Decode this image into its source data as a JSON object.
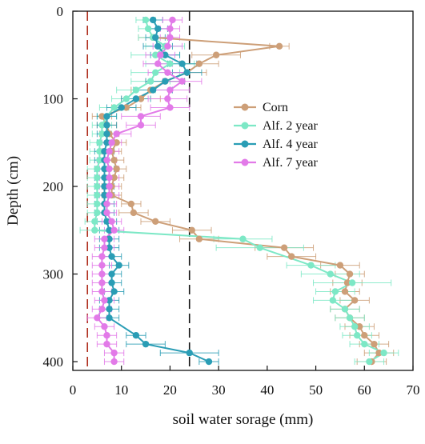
{
  "chart_data": {
    "type": "line",
    "orientation": "depth-profile",
    "xlabel": "soil water sorage (mm)",
    "ylabel": "Depth (cm)",
    "xlim": [
      0,
      70
    ],
    "ylim": [
      0,
      410
    ],
    "y_inverted": true,
    "x_ticks": [
      0,
      10,
      20,
      30,
      40,
      50,
      60,
      70
    ],
    "y_ticks": [
      0,
      100,
      200,
      300,
      400
    ],
    "grid": false,
    "legend_position": "right-upper",
    "reference_lines": [
      {
        "x": 3,
        "style": "dashed",
        "color": "#b03020"
      },
      {
        "x": 24,
        "style": "dashed",
        "color": "#111111"
      }
    ],
    "series": [
      {
        "name": "Corn",
        "color": "#cd9f78",
        "points": [
          {
            "x": 16.5,
            "y": 30,
            "err": 3
          },
          {
            "x": 42.5,
            "y": 40,
            "err": 2
          },
          {
            "x": 29.5,
            "y": 50,
            "err": 5
          },
          {
            "x": 26.0,
            "y": 60,
            "err": 4
          },
          {
            "x": 23.5,
            "y": 70,
            "err": 4
          },
          {
            "x": 19.0,
            "y": 80,
            "err": 4
          },
          {
            "x": 16.0,
            "y": 90,
            "err": 4
          },
          {
            "x": 14.0,
            "y": 100,
            "err": 4
          },
          {
            "x": 11.0,
            "y": 110,
            "err": 3
          },
          {
            "x": 6.0,
            "y": 120,
            "err": 2
          },
          {
            "x": 7.0,
            "y": 130,
            "err": 2
          },
          {
            "x": 7.5,
            "y": 140,
            "err": 2
          },
          {
            "x": 9.0,
            "y": 150,
            "err": 2
          },
          {
            "x": 8.0,
            "y": 160,
            "err": 2
          },
          {
            "x": 8.5,
            "y": 170,
            "err": 2
          },
          {
            "x": 9.0,
            "y": 180,
            "err": 2
          },
          {
            "x": 8.5,
            "y": 190,
            "err": 2
          },
          {
            "x": 8.0,
            "y": 200,
            "err": 2
          },
          {
            "x": 8.0,
            "y": 210,
            "err": 2
          },
          {
            "x": 12.0,
            "y": 220,
            "err": 2
          },
          {
            "x": 12.5,
            "y": 230,
            "err": 3
          },
          {
            "x": 17.0,
            "y": 240,
            "err": 3
          },
          {
            "x": 24.5,
            "y": 250,
            "err": 4
          },
          {
            "x": 26.0,
            "y": 260,
            "err": 4
          },
          {
            "x": 43.5,
            "y": 270,
            "err": 6
          },
          {
            "x": 45.0,
            "y": 280,
            "err": 5
          },
          {
            "x": 55.0,
            "y": 290,
            "err": 4
          },
          {
            "x": 57.0,
            "y": 300,
            "err": 3
          },
          {
            "x": 56.5,
            "y": 310,
            "err": 3
          },
          {
            "x": 56.0,
            "y": 320,
            "err": 3
          },
          {
            "x": 58.0,
            "y": 330,
            "err": 3
          },
          {
            "x": 56.0,
            "y": 340,
            "err": 3
          },
          {
            "x": 57.0,
            "y": 350,
            "err": 3
          },
          {
            "x": 59.0,
            "y": 360,
            "err": 3
          },
          {
            "x": 60.0,
            "y": 370,
            "err": 3
          },
          {
            "x": 62.0,
            "y": 380,
            "err": 3
          },
          {
            "x": 63.0,
            "y": 390,
            "err": 3
          },
          {
            "x": 61.5,
            "y": 400,
            "err": 3
          }
        ]
      },
      {
        "name": "Alf. 2 year",
        "color": "#7de8c6",
        "points": [
          {
            "x": 15.0,
            "y": 10,
            "err": 2
          },
          {
            "x": 15.5,
            "y": 20,
            "err": 2
          },
          {
            "x": 16.5,
            "y": 30,
            "err": 3
          },
          {
            "x": 19.0,
            "y": 40,
            "err": 4
          },
          {
            "x": 17.0,
            "y": 50,
            "err": 5
          },
          {
            "x": 20.0,
            "y": 60,
            "err": 5
          },
          {
            "x": 17.0,
            "y": 70,
            "err": 5
          },
          {
            "x": 16.0,
            "y": 80,
            "err": 4
          },
          {
            "x": 13.0,
            "y": 90,
            "err": 4
          },
          {
            "x": 11.0,
            "y": 100,
            "err": 3
          },
          {
            "x": 8.5,
            "y": 110,
            "err": 3
          },
          {
            "x": 7.0,
            "y": 120,
            "err": 2
          },
          {
            "x": 6.0,
            "y": 130,
            "err": 2
          },
          {
            "x": 6.0,
            "y": 140,
            "err": 2
          },
          {
            "x": 5.5,
            "y": 150,
            "err": 2
          },
          {
            "x": 5.5,
            "y": 160,
            "err": 2
          },
          {
            "x": 5.5,
            "y": 170,
            "err": 2
          },
          {
            "x": 5.0,
            "y": 180,
            "err": 2
          },
          {
            "x": 5.0,
            "y": 190,
            "err": 2
          },
          {
            "x": 5.0,
            "y": 200,
            "err": 2
          },
          {
            "x": 5.0,
            "y": 210,
            "err": 2
          },
          {
            "x": 5.0,
            "y": 220,
            "err": 2
          },
          {
            "x": 5.0,
            "y": 230,
            "err": 2
          },
          {
            "x": 4.5,
            "y": 240,
            "err": 2
          },
          {
            "x": 4.5,
            "y": 250,
            "err": 3
          },
          {
            "x": 35.0,
            "y": 260,
            "err": 6
          },
          {
            "x": 38.5,
            "y": 270,
            "err": 9
          },
          {
            "x": 49.0,
            "y": 290,
            "err": 5
          },
          {
            "x": 53.0,
            "y": 300,
            "err": 6
          },
          {
            "x": 57.5,
            "y": 310,
            "err": 8
          },
          {
            "x": 54.0,
            "y": 320,
            "err": 4
          },
          {
            "x": 53.5,
            "y": 330,
            "err": 4
          },
          {
            "x": 56.0,
            "y": 340,
            "err": 3
          },
          {
            "x": 57.0,
            "y": 350,
            "err": 3
          },
          {
            "x": 58.0,
            "y": 360,
            "err": 3
          },
          {
            "x": 58.5,
            "y": 370,
            "err": 3
          },
          {
            "x": 60.0,
            "y": 380,
            "err": 3
          },
          {
            "x": 64.0,
            "y": 390,
            "err": 3
          },
          {
            "x": 61.0,
            "y": 400,
            "err": 3
          }
        ]
      },
      {
        "name": "Alf. 4 year",
        "color": "#2a9db5",
        "points": [
          {
            "x": 16.5,
            "y": 10,
            "err": 2
          },
          {
            "x": 17.5,
            "y": 20,
            "err": 2
          },
          {
            "x": 17.0,
            "y": 30,
            "err": 2
          },
          {
            "x": 17.5,
            "y": 40,
            "err": 3
          },
          {
            "x": 19.0,
            "y": 50,
            "err": 3
          },
          {
            "x": 22.5,
            "y": 60,
            "err": 3
          },
          {
            "x": 23.5,
            "y": 70,
            "err": 3
          },
          {
            "x": 19.0,
            "y": 80,
            "err": 4
          },
          {
            "x": 16.5,
            "y": 90,
            "err": 4
          },
          {
            "x": 13.0,
            "y": 100,
            "err": 3
          },
          {
            "x": 10.0,
            "y": 110,
            "err": 3
          },
          {
            "x": 7.0,
            "y": 120,
            "err": 2
          },
          {
            "x": 7.0,
            "y": 130,
            "err": 2
          },
          {
            "x": 7.0,
            "y": 140,
            "err": 2
          },
          {
            "x": 7.0,
            "y": 150,
            "err": 2
          },
          {
            "x": 6.5,
            "y": 160,
            "err": 2
          },
          {
            "x": 6.5,
            "y": 170,
            "err": 2
          },
          {
            "x": 6.5,
            "y": 180,
            "err": 2
          },
          {
            "x": 6.5,
            "y": 190,
            "err": 2
          },
          {
            "x": 6.5,
            "y": 200,
            "err": 2
          },
          {
            "x": 6.5,
            "y": 210,
            "err": 2
          },
          {
            "x": 6.5,
            "y": 220,
            "err": 2
          },
          {
            "x": 6.5,
            "y": 230,
            "err": 2
          },
          {
            "x": 7.0,
            "y": 240,
            "err": 2
          },
          {
            "x": 7.5,
            "y": 250,
            "err": 2
          },
          {
            "x": 7.5,
            "y": 260,
            "err": 2
          },
          {
            "x": 7.5,
            "y": 270,
            "err": 2
          },
          {
            "x": 8.0,
            "y": 280,
            "err": 2
          },
          {
            "x": 9.5,
            "y": 290,
            "err": 2
          },
          {
            "x": 8.0,
            "y": 300,
            "err": 2
          },
          {
            "x": 8.0,
            "y": 310,
            "err": 2
          },
          {
            "x": 8.5,
            "y": 320,
            "err": 2
          },
          {
            "x": 7.5,
            "y": 330,
            "err": 2
          },
          {
            "x": 7.5,
            "y": 340,
            "err": 2
          },
          {
            "x": 7.5,
            "y": 350,
            "err": 2
          },
          {
            "x": 13.0,
            "y": 370,
            "err": 2
          },
          {
            "x": 15.0,
            "y": 380,
            "err": 4
          },
          {
            "x": 24.0,
            "y": 390,
            "err": 6
          },
          {
            "x": 28.0,
            "y": 400,
            "err": 2
          }
        ]
      },
      {
        "name": "Alf. 7 year",
        "color": "#e27ae8",
        "points": [
          {
            "x": 20.5,
            "y": 10,
            "err": 2
          },
          {
            "x": 20.0,
            "y": 20,
            "err": 2
          },
          {
            "x": 20.0,
            "y": 30,
            "err": 2
          },
          {
            "x": 19.5,
            "y": 40,
            "err": 3
          },
          {
            "x": 18.0,
            "y": 50,
            "err": 3
          },
          {
            "x": 17.5,
            "y": 60,
            "err": 3
          },
          {
            "x": 19.5,
            "y": 70,
            "err": 4
          },
          {
            "x": 22.5,
            "y": 80,
            "err": 4
          },
          {
            "x": 20.0,
            "y": 90,
            "err": 4
          },
          {
            "x": 19.5,
            "y": 100,
            "err": 4
          },
          {
            "x": 20.0,
            "y": 110,
            "err": 4
          },
          {
            "x": 14.0,
            "y": 120,
            "err": 4
          },
          {
            "x": 14.0,
            "y": 130,
            "err": 3
          },
          {
            "x": 9.0,
            "y": 140,
            "err": 3
          },
          {
            "x": 8.0,
            "y": 150,
            "err": 2
          },
          {
            "x": 7.5,
            "y": 160,
            "err": 2
          },
          {
            "x": 7.0,
            "y": 170,
            "err": 2
          },
          {
            "x": 7.5,
            "y": 180,
            "err": 2
          },
          {
            "x": 7.5,
            "y": 190,
            "err": 2
          },
          {
            "x": 7.5,
            "y": 200,
            "err": 2
          },
          {
            "x": 7.5,
            "y": 210,
            "err": 2
          },
          {
            "x": 7.0,
            "y": 220,
            "err": 2
          },
          {
            "x": 7.0,
            "y": 230,
            "err": 2
          },
          {
            "x": 8.0,
            "y": 240,
            "err": 2
          },
          {
            "x": 8.5,
            "y": 250,
            "err": 2
          },
          {
            "x": 6.5,
            "y": 260,
            "err": 2
          },
          {
            "x": 6.5,
            "y": 270,
            "err": 2
          },
          {
            "x": 6.0,
            "y": 280,
            "err": 2
          },
          {
            "x": 6.0,
            "y": 290,
            "err": 2
          },
          {
            "x": 6.0,
            "y": 300,
            "err": 2
          },
          {
            "x": 6.0,
            "y": 310,
            "err": 2
          },
          {
            "x": 6.0,
            "y": 320,
            "err": 2
          },
          {
            "x": 6.5,
            "y": 330,
            "err": 2
          },
          {
            "x": 6.0,
            "y": 340,
            "err": 2
          },
          {
            "x": 5.0,
            "y": 350,
            "err": 2
          },
          {
            "x": 6.5,
            "y": 360,
            "err": 2
          },
          {
            "x": 7.0,
            "y": 370,
            "err": 2
          },
          {
            "x": 7.0,
            "y": 380,
            "err": 2
          },
          {
            "x": 8.5,
            "y": 390,
            "err": 2
          },
          {
            "x": 8.5,
            "y": 400,
            "err": 2
          }
        ]
      }
    ]
  }
}
